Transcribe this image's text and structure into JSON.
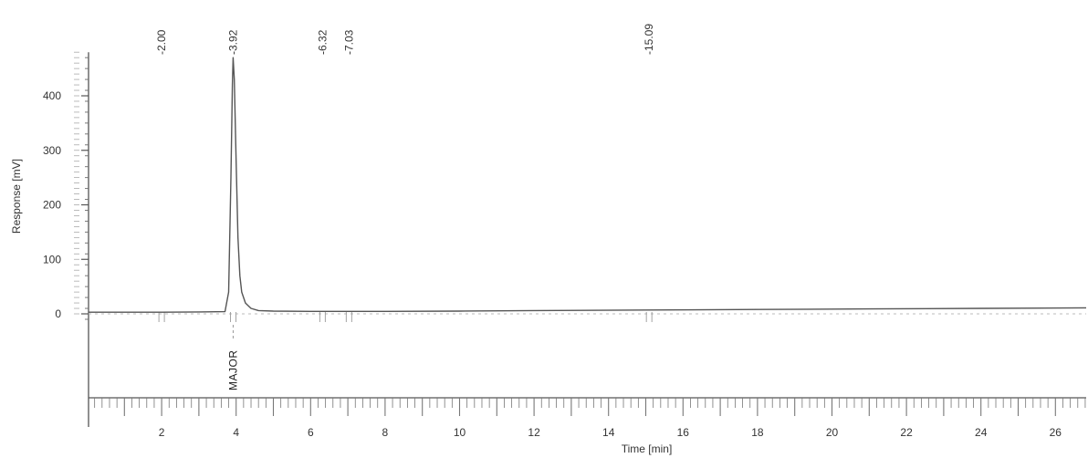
{
  "chart_data": {
    "type": "line",
    "title": "",
    "xlabel": "Time [min]",
    "ylabel": "Response [mV]",
    "xlim": [
      0,
      27
    ],
    "ylim": [
      -15,
      480
    ],
    "x_ticks": [
      2,
      4,
      6,
      8,
      10,
      12,
      14,
      16,
      18,
      20,
      22,
      24,
      26
    ],
    "x_tick_labels": [
      "2",
      "4",
      "6",
      "8",
      "10",
      "12",
      "14",
      "16",
      "18",
      "20",
      "22",
      "24",
      "26"
    ],
    "y_ticks": [
      0,
      100,
      200,
      300,
      400
    ],
    "y_tick_labels": [
      "0",
      "100",
      "200",
      "300",
      "400"
    ],
    "grid": false,
    "legend": "none",
    "series": [
      {
        "x": [
          0,
          1,
          2,
          3,
          3.7,
          3.8,
          3.86,
          3.9,
          3.92,
          3.95,
          4.0,
          4.05,
          4.1,
          4.15,
          4.25,
          4.4,
          4.6,
          5,
          6,
          8,
          10,
          12,
          15,
          18,
          21,
          24,
          27
        ],
        "y": [
          3,
          3,
          3,
          3.5,
          4,
          40,
          250,
          420,
          470,
          430,
          280,
          140,
          70,
          40,
          20,
          10,
          6,
          5,
          4.5,
          4.5,
          5,
          6,
          7,
          8,
          9,
          10,
          11
        ]
      }
    ],
    "peaks": [
      {
        "time": 2.0,
        "label": "2.00"
      },
      {
        "time": 3.92,
        "label": "3.92"
      },
      {
        "time": 6.32,
        "label": "6.32"
      },
      {
        "time": 7.03,
        "label": "7.03"
      },
      {
        "time": 15.09,
        "label": "15.09"
      }
    ],
    "annotations": [
      {
        "x": 3.92,
        "text": "MAJOR"
      }
    ],
    "colors": {
      "trace": "#555555",
      "axis": "#555555",
      "text": "#333333",
      "ticks": "#777777"
    }
  }
}
